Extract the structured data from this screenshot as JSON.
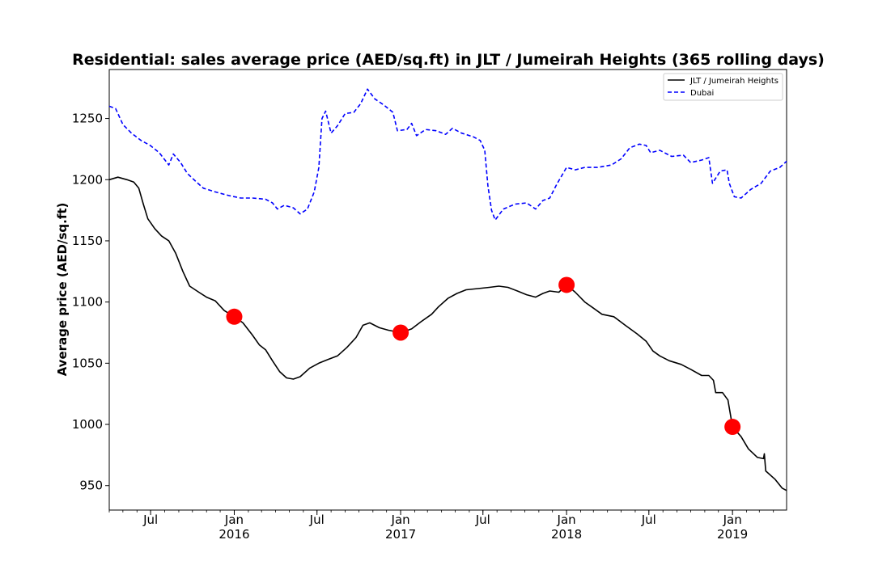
{
  "chart_data": {
    "type": "line",
    "title": "Residential: sales average price (AED/sq.ft) in JLT / Jumeirah Heights (365 rolling days)",
    "xlabel": "",
    "ylabel": "Average price (AED/sq.ft)",
    "xlim": [
      "2015-04-01",
      "2019-04-30"
    ],
    "ylim": [
      930,
      1290
    ],
    "y_ticks": [
      950,
      1000,
      1050,
      1100,
      1150,
      1200,
      1250
    ],
    "x_ticks": [
      {
        "date": "2015-07-01",
        "label": "Jul",
        "year": ""
      },
      {
        "date": "2016-01-01",
        "label": "Jan",
        "year": "2016"
      },
      {
        "date": "2016-07-01",
        "label": "Jul",
        "year": ""
      },
      {
        "date": "2017-01-01",
        "label": "Jan",
        "year": "2017"
      },
      {
        "date": "2017-07-01",
        "label": "Jul",
        "year": ""
      },
      {
        "date": "2018-01-01",
        "label": "Jan",
        "year": "2018"
      },
      {
        "date": "2018-07-01",
        "label": "Jul",
        "year": ""
      },
      {
        "date": "2019-01-01",
        "label": "Jan",
        "year": "2019"
      }
    ],
    "grid": false,
    "legend_position": "top-right",
    "series": [
      {
        "name": "JLT / Jumeirah Heights",
        "color": "#000000",
        "style": "solid",
        "points": [
          [
            "2015-04-01",
            1200
          ],
          [
            "2015-04-20",
            1202
          ],
          [
            "2015-05-10",
            1200
          ],
          [
            "2015-05-25",
            1198
          ],
          [
            "2015-06-05",
            1193
          ],
          [
            "2015-06-15",
            1180
          ],
          [
            "2015-06-25",
            1168
          ],
          [
            "2015-07-10",
            1160
          ],
          [
            "2015-07-25",
            1154
          ],
          [
            "2015-08-10",
            1150
          ],
          [
            "2015-08-25",
            1140
          ],
          [
            "2015-09-10",
            1125
          ],
          [
            "2015-09-25",
            1113
          ],
          [
            "2015-10-15",
            1108
          ],
          [
            "2015-11-01",
            1104
          ],
          [
            "2015-11-20",
            1101
          ],
          [
            "2015-12-10",
            1093
          ],
          [
            "2016-01-01",
            1088
          ],
          [
            "2016-01-20",
            1083
          ],
          [
            "2016-02-10",
            1073
          ],
          [
            "2016-02-25",
            1065
          ],
          [
            "2016-03-10",
            1061
          ],
          [
            "2016-03-25",
            1052
          ],
          [
            "2016-04-10",
            1043
          ],
          [
            "2016-04-25",
            1038
          ],
          [
            "2016-05-10",
            1037
          ],
          [
            "2016-05-25",
            1039
          ],
          [
            "2016-06-15",
            1046
          ],
          [
            "2016-07-05",
            1050
          ],
          [
            "2016-07-25",
            1053
          ],
          [
            "2016-08-15",
            1056
          ],
          [
            "2016-09-05",
            1063
          ],
          [
            "2016-09-25",
            1071
          ],
          [
            "2016-10-10",
            1081
          ],
          [
            "2016-10-25",
            1083
          ],
          [
            "2016-11-15",
            1079
          ],
          [
            "2016-12-05",
            1077
          ],
          [
            "2017-01-01",
            1075
          ],
          [
            "2017-01-25",
            1078
          ],
          [
            "2017-02-15",
            1084
          ],
          [
            "2017-03-10",
            1090
          ],
          [
            "2017-03-25",
            1096
          ],
          [
            "2017-04-15",
            1103
          ],
          [
            "2017-05-05",
            1107
          ],
          [
            "2017-05-25",
            1110
          ],
          [
            "2017-06-20",
            1111
          ],
          [
            "2017-07-15",
            1112
          ],
          [
            "2017-08-05",
            1113
          ],
          [
            "2017-08-25",
            1112
          ],
          [
            "2017-09-15",
            1109
          ],
          [
            "2017-10-05",
            1106
          ],
          [
            "2017-10-25",
            1104
          ],
          [
            "2017-11-10",
            1107
          ],
          [
            "2017-11-25",
            1109
          ],
          [
            "2017-12-15",
            1108
          ],
          [
            "2018-01-01",
            1114
          ],
          [
            "2018-01-20",
            1108
          ],
          [
            "2018-02-10",
            1100
          ],
          [
            "2018-03-01",
            1095
          ],
          [
            "2018-03-20",
            1090
          ],
          [
            "2018-04-15",
            1088
          ],
          [
            "2018-05-10",
            1081
          ],
          [
            "2018-06-05",
            1074
          ],
          [
            "2018-06-25",
            1068
          ],
          [
            "2018-07-10",
            1060
          ],
          [
            "2018-07-25",
            1056
          ],
          [
            "2018-08-15",
            1052
          ],
          [
            "2018-09-10",
            1049
          ],
          [
            "2018-10-01",
            1045
          ],
          [
            "2018-10-25",
            1040
          ],
          [
            "2018-11-10",
            1040
          ],
          [
            "2018-11-20",
            1036
          ],
          [
            "2018-11-25",
            1026
          ],
          [
            "2018-12-10",
            1026
          ],
          [
            "2018-12-22",
            1020
          ],
          [
            "2019-01-01",
            998
          ],
          [
            "2019-01-20",
            990
          ],
          [
            "2019-02-05",
            980
          ],
          [
            "2019-02-25",
            973
          ],
          [
            "2019-03-10",
            972
          ],
          [
            "2019-03-12",
            976
          ],
          [
            "2019-03-15",
            962
          ],
          [
            "2019-04-05",
            955
          ],
          [
            "2019-04-20",
            948
          ],
          [
            "2019-04-30",
            946
          ]
        ]
      },
      {
        "name": "Dubai",
        "color": "#0000ff",
        "style": "dashed",
        "points": [
          [
            "2015-04-01",
            1260
          ],
          [
            "2015-04-15",
            1258
          ],
          [
            "2015-05-01",
            1245
          ],
          [
            "2015-05-20",
            1238
          ],
          [
            "2015-06-10",
            1232
          ],
          [
            "2015-06-30",
            1228
          ],
          [
            "2015-07-20",
            1222
          ],
          [
            "2015-08-10",
            1212
          ],
          [
            "2015-08-20",
            1221
          ],
          [
            "2015-09-05",
            1214
          ],
          [
            "2015-09-20",
            1205
          ],
          [
            "2015-10-10",
            1198
          ],
          [
            "2015-10-25",
            1193
          ],
          [
            "2015-11-20",
            1190
          ],
          [
            "2015-12-20",
            1187
          ],
          [
            "2016-01-15",
            1185
          ],
          [
            "2016-02-10",
            1185
          ],
          [
            "2016-03-10",
            1184
          ],
          [
            "2016-03-25",
            1181
          ],
          [
            "2016-04-05",
            1176
          ],
          [
            "2016-04-20",
            1179
          ],
          [
            "2016-05-10",
            1177
          ],
          [
            "2016-05-25",
            1172
          ],
          [
            "2016-06-10",
            1176
          ],
          [
            "2016-06-25",
            1190
          ],
          [
            "2016-07-05",
            1210
          ],
          [
            "2016-07-12",
            1250
          ],
          [
            "2016-07-20",
            1256
          ],
          [
            "2016-08-01",
            1238
          ],
          [
            "2016-08-15",
            1244
          ],
          [
            "2016-09-01",
            1254
          ],
          [
            "2016-09-20",
            1255
          ],
          [
            "2016-10-05",
            1262
          ],
          [
            "2016-10-20",
            1274
          ],
          [
            "2016-11-05",
            1266
          ],
          [
            "2016-11-25",
            1261
          ],
          [
            "2016-12-15",
            1255
          ],
          [
            "2016-12-25",
            1240
          ],
          [
            "2017-01-15",
            1241
          ],
          [
            "2017-01-25",
            1246
          ],
          [
            "2017-02-05",
            1236
          ],
          [
            "2017-02-25",
            1241
          ],
          [
            "2017-03-20",
            1240
          ],
          [
            "2017-04-10",
            1237
          ],
          [
            "2017-04-25",
            1242
          ],
          [
            "2017-05-15",
            1238
          ],
          [
            "2017-06-10",
            1235
          ],
          [
            "2017-06-25",
            1232
          ],
          [
            "2017-07-05",
            1224
          ],
          [
            "2017-07-12",
            1195
          ],
          [
            "2017-07-20",
            1175
          ],
          [
            "2017-07-28",
            1167
          ],
          [
            "2017-08-15",
            1176
          ],
          [
            "2017-09-10",
            1180
          ],
          [
            "2017-10-05",
            1181
          ],
          [
            "2017-10-25",
            1176
          ],
          [
            "2017-11-10",
            1183
          ],
          [
            "2017-11-25",
            1185
          ],
          [
            "2017-12-10",
            1196
          ],
          [
            "2018-01-01",
            1210
          ],
          [
            "2018-01-20",
            1208
          ],
          [
            "2018-02-10",
            1210
          ],
          [
            "2018-03-10",
            1210
          ],
          [
            "2018-04-10",
            1212
          ],
          [
            "2018-05-01",
            1217
          ],
          [
            "2018-05-20",
            1226
          ],
          [
            "2018-06-10",
            1229
          ],
          [
            "2018-06-25",
            1228
          ],
          [
            "2018-07-05",
            1222
          ],
          [
            "2018-07-25",
            1224
          ],
          [
            "2018-08-20",
            1219
          ],
          [
            "2018-09-15",
            1220
          ],
          [
            "2018-10-01",
            1214
          ],
          [
            "2018-10-25",
            1216
          ],
          [
            "2018-11-10",
            1218
          ],
          [
            "2018-11-18",
            1197
          ],
          [
            "2018-12-05",
            1207
          ],
          [
            "2018-12-20",
            1208
          ],
          [
            "2018-12-25",
            1197
          ],
          [
            "2019-01-05",
            1186
          ],
          [
            "2019-01-20",
            1185
          ],
          [
            "2019-02-10",
            1192
          ],
          [
            "2019-03-05",
            1197
          ],
          [
            "2019-03-25",
            1207
          ],
          [
            "2019-04-15",
            1210
          ],
          [
            "2019-04-30",
            1215
          ]
        ]
      }
    ],
    "markers": {
      "color": "#ff0000",
      "points": [
        [
          "2016-01-01",
          1088
        ],
        [
          "2017-01-01",
          1075
        ],
        [
          "2018-01-01",
          1114
        ],
        [
          "2019-01-01",
          998
        ]
      ]
    }
  }
}
